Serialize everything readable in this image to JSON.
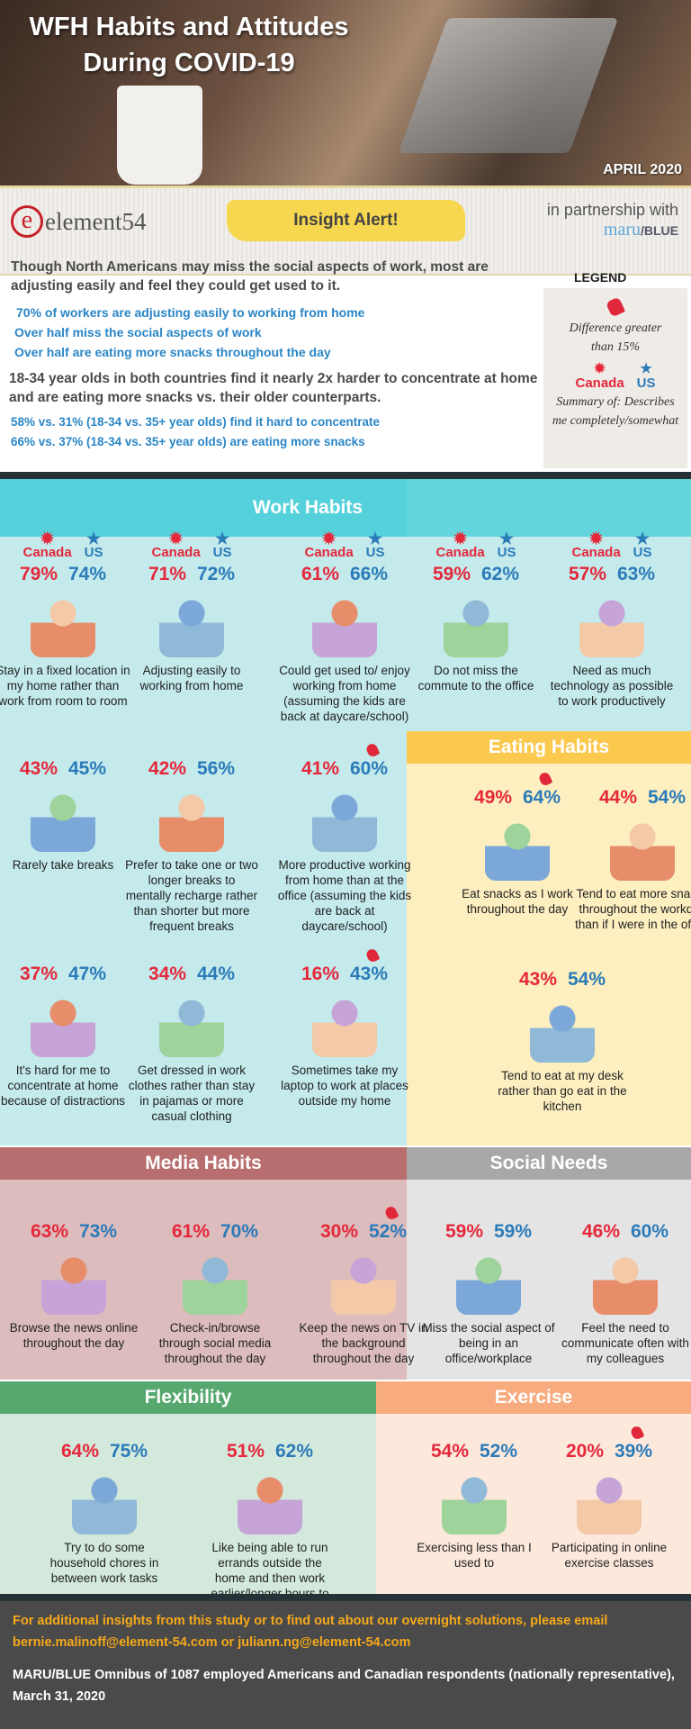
{
  "hero": {
    "title_line1": "WFH Habits and Attitudes",
    "title_line2": "During COVID-19",
    "date": "APRIL 2020"
  },
  "brand": {
    "logo": "element54",
    "alert": "Insight Alert!",
    "partner_text": "in partnership with",
    "partner_logo_a": "maru",
    "partner_logo_b": "/BLUE"
  },
  "intro": {
    "headline1": "Though North Americans may miss the social aspects of work, most are adjusting easily and feel they could get used to it.",
    "bullets1": [
      "70% of workers are adjusting easily to working from home",
      "Over half miss the social aspects of work",
      "Over half are eating more snacks throughout the day"
    ],
    "headline2": "18-34 year olds in both countries find it nearly 2x harder to concentrate at home and are eating more snacks vs. their older counterparts.",
    "bullets2": [
      "58% vs. 31% (18-34 vs. 35+ year olds) find it hard to concentrate",
      "66% vs. 37% (18-34 vs. 35+ year olds) are eating more snacks"
    ]
  },
  "legend": {
    "title": "LEGEND",
    "diff_label": "Difference greater than 15%",
    "canada": "Canada",
    "us": "US",
    "summary": "Summary of: Describes me completely/somewhat"
  },
  "colors": {
    "canada": "#e5283b",
    "us": "#2b7bb9",
    "work": "#55d1dc",
    "eating": "#fcc94f",
    "media": "#b86e6e",
    "social": "#a8a8a8",
    "flex": "#57a86f",
    "exercise": "#f7ab7f"
  },
  "sections": {
    "work": {
      "title": "Work Habits",
      "cards": [
        {
          "canada": "79%",
          "us": "74%",
          "text": "Stay in a fixed location in my home rather than work from room to room",
          "icon": "desk-worker-icon"
        },
        {
          "canada": "71%",
          "us": "72%",
          "text": "Adjusting easily to working from home",
          "icon": "home-thumbs-up-icon"
        },
        {
          "canada": "61%",
          "us": "66%",
          "text": "Could get used to/ enjoy working from home (assuming the kids are back at daycare/school)",
          "icon": "happy-worker-icon"
        },
        {
          "canada": "59%",
          "us": "62%",
          "text": "Do not miss the commute to the office",
          "icon": "commute-home-icon"
        },
        {
          "canada": "57%",
          "us": "63%",
          "text": "Need as much technology as possible to work productively",
          "icon": "multitask-tech-icon"
        },
        {
          "canada": "43%",
          "us": "45%",
          "text": "Rarely take breaks",
          "icon": "clock-laptop-icon"
        },
        {
          "canada": "42%",
          "us": "56%",
          "text": "Prefer to take one or two longer breaks to mentally recharge rather than shorter but more frequent breaks",
          "icon": "balance-scale-icon"
        },
        {
          "canada": "41%",
          "us": "60%",
          "text": "More productive working from home than at the office (assuming the kids are back at daycare/school)",
          "icon": "jumping-worker-icon",
          "diff": true
        },
        {
          "canada": "37%",
          "us": "47%",
          "text": "It's hard for me to concentrate at home because of distractions",
          "icon": "distracted-woman-icon"
        },
        {
          "canada": "34%",
          "us": "44%",
          "text": "Get dressed in work clothes rather than stay in pajamas or more casual clothing",
          "icon": "dressed-worker-icon"
        },
        {
          "canada": "16%",
          "us": "43%",
          "text": "Sometimes take my laptop to work at places outside my home",
          "icon": "laptop-cafe-icon",
          "diff": true
        }
      ]
    },
    "eating": {
      "title": "Eating Habits",
      "cards": [
        {
          "canada": "49%",
          "us": "64%",
          "text": "Eat snacks as I work throughout the day",
          "icon": "snacking-chair-icon",
          "diff": true
        },
        {
          "canada": "44%",
          "us": "54%",
          "text": "Tend to eat more snacks throughout the workday than if I were in the office",
          "icon": "healthy-food-icon"
        },
        {
          "canada": "43%",
          "us": "54%",
          "text": "Tend to eat at my desk rather than go eat in the kitchen",
          "icon": "kitchen-desk-icon"
        }
      ]
    },
    "media": {
      "title": "Media Habits",
      "cards": [
        {
          "canada": "63%",
          "us": "73%",
          "text": "Browse the news online throughout the day",
          "icon": "news-browser-icon"
        },
        {
          "canada": "61%",
          "us": "70%",
          "text": "Check-in/browse through social media throughout the day",
          "icon": "social-media-icon"
        },
        {
          "canada": "30%",
          "us": "52%",
          "text": "Keep the news on TV in the background throughout the day",
          "icon": "news-anchor-icon",
          "diff": true
        }
      ]
    },
    "social": {
      "title": "Social Needs",
      "cards": [
        {
          "canada": "59%",
          "us": "59%",
          "text": "Miss the social aspect of being in an office/workplace",
          "icon": "coworkers-icon"
        },
        {
          "canada": "46%",
          "us": "60%",
          "text": "Feel the need to communicate often with my colleagues",
          "icon": "video-call-icon"
        }
      ]
    },
    "flex": {
      "title": "Flexibility",
      "cards": [
        {
          "canada": "64%",
          "us": "75%",
          "text": "Try to do some household chores in between work tasks",
          "icon": "chores-icon"
        },
        {
          "canada": "51%",
          "us": "62%",
          "text": "Like being able to run errands outside the home and then work earlier/longer hours to compensate",
          "icon": "dog-walk-icon"
        }
      ]
    },
    "exercise": {
      "title": "Exercise",
      "cards": [
        {
          "canada": "54%",
          "us": "52%",
          "text": "Exercising less than I used to",
          "icon": "calendar-dumbbell-icon"
        },
        {
          "canada": "20%",
          "us": "39%",
          "text": "Participating in online exercise classes",
          "icon": "online-yoga-icon",
          "diff": true
        }
      ]
    }
  },
  "footer": {
    "contact": "For additional insights from this study or to find out about our overnight solutions, please email bernie.malinoff@element-54.com or juliann.ng@element-54.com",
    "source": "MARU/BLUE Omnibus of 1087 employed Americans and Canadian respondents (nationally representative), March 31, 2020"
  }
}
